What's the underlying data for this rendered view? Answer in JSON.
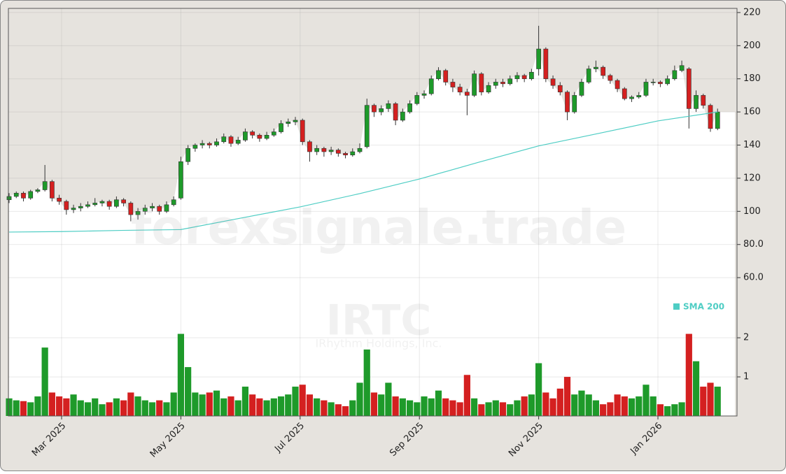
{
  "chart_data": {
    "type": "candlestick",
    "watermark": "forexsignale.trade",
    "symbol": "IRTC",
    "company": "IRhythm Holdings, Inc.",
    "up_color": "#1e9a2a",
    "down_color": "#d42020",
    "grid": true,
    "xlim": [
      2.108,
      14.326
    ],
    "xticks": [
      {
        "value": 3,
        "label": "Mar 2025"
      },
      {
        "value": 5,
        "label": "May 2025"
      },
      {
        "value": 7,
        "label": "Jul 2025"
      },
      {
        "value": 9,
        "label": "Sep 2025"
      },
      {
        "value": 11,
        "label": "Nov 2025"
      },
      {
        "value": 13,
        "label": "Jan 2026"
      }
    ],
    "ylim": [
      -23.5,
      222.5
    ],
    "yticks": [
      {
        "value": 60,
        "label": "60.0"
      },
      {
        "value": 80,
        "label": "80.0"
      },
      100,
      120,
      140,
      160,
      180,
      200,
      220
    ],
    "y2lim": [
      0,
      2.95
    ],
    "y2ticks": [
      1,
      2
    ],
    "x": [
      2.12,
      2.24,
      2.36,
      2.48,
      2.6,
      2.72,
      2.84,
      2.96,
      3.08,
      3.2,
      3.32,
      3.44,
      3.56,
      3.68,
      3.8,
      3.92,
      4.04,
      4.16,
      4.28,
      4.4,
      4.52,
      4.64,
      4.76,
      4.88,
      5.0,
      5.12,
      5.24,
      5.36,
      5.48,
      5.6,
      5.72,
      5.84,
      5.96,
      6.08,
      6.2,
      6.32,
      6.44,
      6.56,
      6.68,
      6.8,
      6.92,
      7.04,
      7.16,
      7.28,
      7.4,
      7.52,
      7.64,
      7.76,
      7.88,
      8.0,
      8.12,
      8.24,
      8.36,
      8.48,
      8.6,
      8.72,
      8.84,
      8.96,
      9.08,
      9.2,
      9.32,
      9.44,
      9.56,
      9.68,
      9.8,
      9.92,
      10.04,
      10.16,
      10.28,
      10.4,
      10.52,
      10.64,
      10.76,
      10.88,
      11.0,
      11.12,
      11.24,
      11.36,
      11.48,
      11.6,
      11.72,
      11.84,
      11.96,
      12.08,
      12.2,
      12.32,
      12.44,
      12.56,
      12.68,
      12.8,
      12.92,
      13.04,
      13.16,
      13.28,
      13.4,
      13.52,
      13.64,
      13.76,
      13.88,
      14.0
    ],
    "open": [
      107,
      109,
      111,
      108,
      112,
      113,
      118,
      108,
      106,
      101,
      102,
      103,
      104,
      105,
      106,
      103,
      107,
      105,
      98,
      100,
      102,
      103,
      100,
      104,
      108,
      130,
      138,
      140,
      141,
      140,
      142,
      145,
      141,
      143,
      148,
      146,
      144,
      146,
      148,
      153,
      154,
      155,
      142,
      136,
      138,
      136,
      137,
      135,
      134,
      136,
      139,
      164,
      160,
      162,
      165,
      155,
      160,
      165,
      170,
      171,
      180,
      185,
      178,
      175,
      172,
      170,
      183,
      172,
      176,
      178,
      177,
      180,
      182,
      180,
      186,
      198,
      180,
      176,
      172,
      160,
      170,
      178,
      186,
      187,
      182,
      179,
      174,
      168,
      169,
      170,
      178,
      178,
      177,
      180,
      185,
      186,
      162,
      170,
      164,
      150
    ],
    "high": [
      111,
      112,
      112,
      113,
      114,
      128,
      119,
      110,
      107,
      104,
      105,
      106,
      108,
      107,
      107,
      109,
      108,
      106,
      102,
      104,
      105,
      104,
      106,
      109,
      133,
      140,
      141,
      143,
      142,
      144,
      147,
      146,
      145,
      150,
      149,
      147,
      148,
      150,
      155,
      156,
      157,
      156,
      143,
      140,
      139,
      139,
      138,
      136,
      138,
      141,
      168,
      165,
      164,
      167,
      166,
      162,
      167,
      172,
      173,
      182,
      187,
      186,
      180,
      177,
      174,
      185,
      184,
      178,
      180,
      180,
      182,
      184,
      183,
      186,
      212,
      199,
      182,
      178,
      173,
      172,
      180,
      188,
      191,
      188,
      183,
      180,
      175,
      170,
      172,
      180,
      180,
      179,
      182,
      188,
      191,
      187,
      173,
      171,
      165,
      162
    ],
    "low": [
      105,
      108,
      106,
      107,
      111,
      112,
      106,
      104,
      98,
      99,
      100,
      102,
      103,
      103,
      101,
      102,
      103,
      94,
      95,
      98,
      100,
      98,
      99,
      103,
      107,
      128,
      136,
      138,
      138,
      139,
      141,
      139,
      140,
      142,
      144,
      142,
      143,
      145,
      147,
      151,
      152,
      140,
      130,
      134,
      133,
      134,
      133,
      132,
      133,
      135,
      138,
      157,
      158,
      160,
      152,
      154,
      159,
      164,
      168,
      170,
      179,
      176,
      172,
      170,
      158,
      169,
      170,
      171,
      174,
      175,
      176,
      178,
      178,
      179,
      182,
      178,
      174,
      170,
      155,
      159,
      169,
      177,
      184,
      180,
      177,
      172,
      167,
      166,
      168,
      169,
      176,
      175,
      176,
      179,
      184,
      150,
      160,
      162,
      148,
      149
    ],
    "close": [
      109,
      111,
      108,
      112,
      113,
      118,
      108,
      106,
      101,
      102,
      103,
      104,
      105,
      106,
      103,
      107,
      105,
      98,
      100,
      102,
      103,
      100,
      104,
      107,
      130,
      138,
      140,
      141,
      140,
      142,
      145,
      141,
      143,
      148,
      146,
      144,
      146,
      148,
      153,
      154,
      155,
      142,
      136,
      138,
      136,
      137,
      135,
      134,
      136,
      138,
      164,
      160,
      162,
      165,
      155,
      160,
      165,
      170,
      171,
      180,
      185,
      178,
      175,
      172,
      170,
      183,
      172,
      176,
      178,
      177,
      180,
      182,
      180,
      184,
      198,
      180,
      176,
      172,
      160,
      170,
      178,
      186,
      187,
      182,
      179,
      174,
      168,
      169,
      170,
      178,
      178,
      177,
      180,
      185,
      188,
      162,
      170,
      164,
      150,
      160
    ],
    "volume": [
      0.45,
      0.4,
      0.38,
      0.35,
      0.5,
      1.75,
      0.6,
      0.5,
      0.45,
      0.55,
      0.4,
      0.35,
      0.45,
      0.3,
      0.35,
      0.45,
      0.4,
      0.6,
      0.5,
      0.4,
      0.35,
      0.4,
      0.35,
      0.6,
      2.1,
      1.25,
      0.6,
      0.55,
      0.6,
      0.65,
      0.45,
      0.5,
      0.4,
      0.75,
      0.55,
      0.45,
      0.4,
      0.45,
      0.5,
      0.55,
      0.75,
      0.8,
      0.55,
      0.45,
      0.4,
      0.35,
      0.3,
      0.25,
      0.4,
      0.85,
      1.7,
      0.6,
      0.55,
      0.85,
      0.5,
      0.45,
      0.4,
      0.35,
      0.5,
      0.45,
      0.65,
      0.45,
      0.4,
      0.35,
      1.05,
      0.45,
      0.3,
      0.35,
      0.4,
      0.35,
      0.3,
      0.4,
      0.5,
      0.55,
      1.35,
      0.6,
      0.45,
      0.7,
      1.0,
      0.55,
      0.65,
      0.55,
      0.4,
      0.3,
      0.35,
      0.55,
      0.5,
      0.45,
      0.5,
      0.8,
      0.5,
      0.3,
      0.25,
      0.3,
      0.35,
      2.1,
      1.4,
      0.75,
      0.85,
      0.75
    ],
    "sma": {
      "name": "SMA 200",
      "color": "#4ecdc4",
      "x": [
        2.12,
        3,
        4,
        5,
        6,
        7,
        8,
        9,
        10,
        11,
        12,
        13,
        14
      ],
      "values": [
        87.5,
        87.8,
        88.5,
        89,
        95.9,
        102.7,
        110.7,
        119.5,
        129.7,
        139.5,
        147,
        154.6,
        160
      ]
    }
  }
}
